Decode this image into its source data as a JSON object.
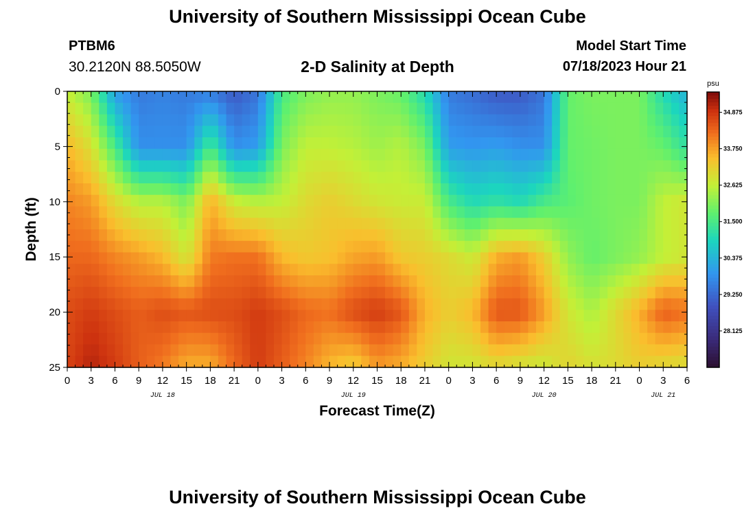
{
  "header": {
    "title": "University of Southern Mississippi Ocean Cube",
    "footer_title": "University of Southern Mississippi Ocean Cube",
    "station_id": "PTBM6",
    "station_coords": "30.2120N  88.5050W",
    "plot_title": "2-D Salinity at Depth",
    "model_start_label": "Model Start Time",
    "model_start_value": "07/18/2023 Hour 21"
  },
  "chart_data": {
    "type": "heatmap",
    "title": "2-D Salinity at Depth",
    "xlabel": "Forecast Time(Z)",
    "ylabel": "Depth (ft)",
    "x_range_hours": [
      0,
      78
    ],
    "y_range": [
      0,
      25
    ],
    "x_tick_labels": [
      "0",
      "3",
      "6",
      "9",
      "12",
      "15",
      "18",
      "21",
      "0",
      "3",
      "6",
      "9",
      "12",
      "15",
      "18",
      "21",
      "0",
      "3",
      "6",
      "9",
      "12",
      "15",
      "18",
      "21",
      "0",
      "3",
      "6"
    ],
    "y_tick_labels": [
      "0",
      "5",
      "10",
      "15",
      "20",
      "25"
    ],
    "date_labels": [
      {
        "label": "JUL 18",
        "hour": 12
      },
      {
        "label": "JUL 19",
        "hour": 36
      },
      {
        "label": "JUL 20",
        "hour": 60
      },
      {
        "label": "JUL 21",
        "hour": 75
      }
    ],
    "colorbar": {
      "unit": "psu",
      "range": [
        27.0,
        35.5
      ],
      "tick_labels": [
        "34.875",
        "33.750",
        "32.625",
        "31.500",
        "30.375",
        "29.250",
        "28.125"
      ]
    },
    "grid_hours": [
      0,
      3,
      6,
      9,
      12,
      15,
      18,
      21,
      24,
      27,
      30,
      33,
      36,
      39,
      42,
      45,
      48,
      51,
      54,
      57,
      60,
      63,
      66,
      69,
      72,
      75,
      78
    ],
    "grid_depths": [
      0,
      5,
      10,
      15,
      20,
      25
    ],
    "values": [
      [
        32.6,
        32.0,
        30.0,
        29.5,
        29.6,
        29.5,
        29.5,
        29.0,
        29.4,
        31.5,
        32.0,
        32.2,
        32.2,
        32.0,
        31.8,
        31.0,
        29.5,
        29.3,
        29.0,
        29.0,
        29.4,
        31.8,
        32.0,
        32.0,
        32.0,
        31.0,
        30.3
      ],
      [
        33.5,
        32.9,
        31.5,
        29.8,
        29.8,
        29.8,
        31.5,
        29.8,
        30.0,
        32.0,
        32.6,
        32.6,
        32.5,
        32.3,
        32.5,
        32.0,
        30.0,
        29.9,
        30.0,
        29.8,
        29.8,
        31.8,
        31.9,
        32.0,
        32.0,
        31.8,
        31.2
      ],
      [
        34.0,
        33.8,
        33.0,
        32.5,
        32.5,
        32.0,
        33.6,
        32.7,
        32.5,
        32.6,
        33.0,
        33.2,
        33.0,
        32.8,
        32.7,
        32.7,
        31.5,
        31.0,
        31.2,
        31.0,
        31.5,
        31.7,
        31.9,
        32.0,
        32.0,
        32.6,
        32.8
      ],
      [
        34.3,
        34.3,
        34.0,
        33.8,
        33.5,
        32.8,
        34.1,
        34.2,
        34.2,
        33.5,
        33.3,
        33.4,
        33.7,
        33.8,
        33.3,
        33.2,
        33.0,
        32.7,
        33.6,
        33.8,
        33.2,
        32.2,
        31.8,
        32.0,
        32.2,
        32.6,
        32.8
      ],
      [
        34.6,
        34.8,
        34.6,
        34.4,
        34.6,
        34.5,
        34.6,
        34.6,
        34.8,
        34.6,
        34.3,
        34.2,
        34.6,
        34.8,
        34.5,
        33.6,
        33.2,
        33.5,
        34.5,
        34.5,
        33.8,
        32.8,
        32.4,
        33.0,
        33.6,
        34.4,
        34.2
      ],
      [
        34.7,
        35.1,
        34.8,
        34.4,
        34.1,
        33.6,
        33.6,
        34.3,
        34.8,
        34.4,
        34.0,
        33.5,
        33.2,
        33.8,
        33.6,
        33.2,
        32.8,
        32.8,
        33.0,
        32.8,
        32.7,
        33.1,
        32.9,
        33.0,
        33.2,
        33.0,
        32.9
      ]
    ]
  }
}
